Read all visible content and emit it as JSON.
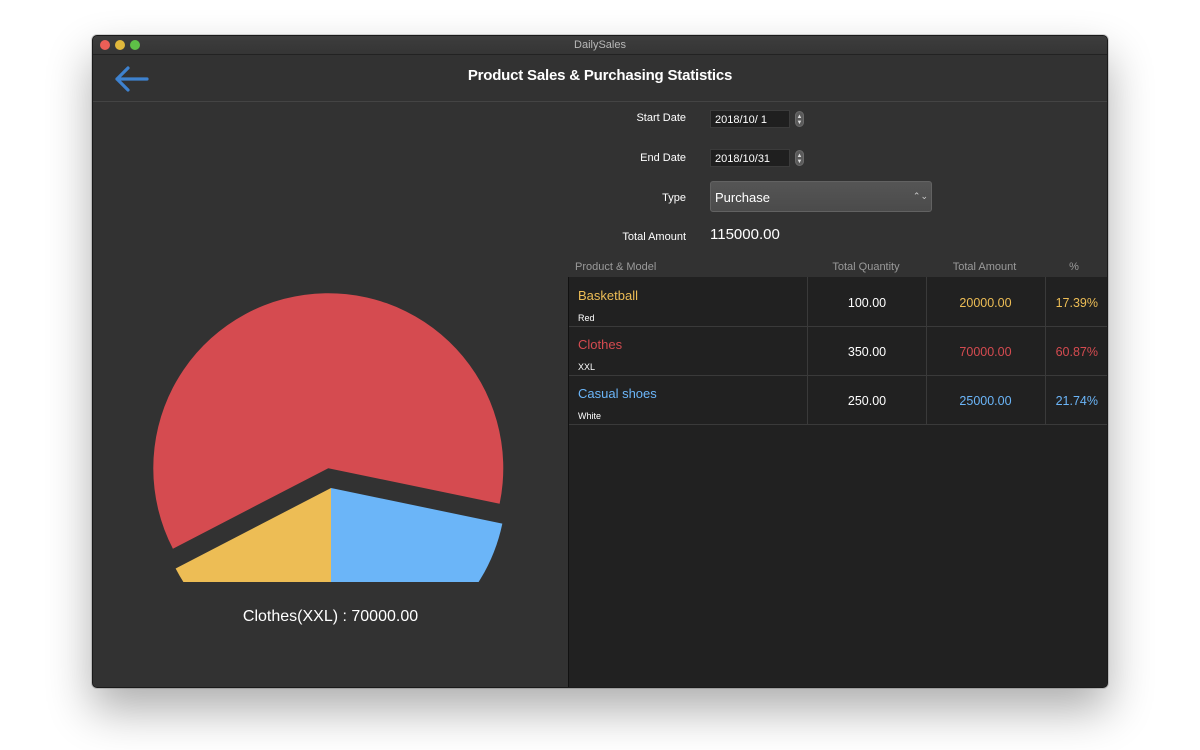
{
  "window": {
    "title": "DailySales"
  },
  "header": {
    "title": "Product Sales & Purchasing Statistics"
  },
  "form": {
    "start_date_label": "Start Date",
    "start_date_value": "2018/10/  1",
    "end_date_label": "End Date",
    "end_date_value": "2018/10/31",
    "type_label": "Type",
    "type_value": "Purchase",
    "total_amount_label": "Total Amount",
    "total_amount_value": "115000.00"
  },
  "table": {
    "columns": [
      "Product & Model",
      "Total Quantity",
      "Total Amount",
      "%"
    ],
    "rows": [
      {
        "name": "Basketball",
        "model": "Red",
        "quantity": "100.00",
        "amount": "20000.00",
        "percent": "17.39%",
        "color": "#EDBD55"
      },
      {
        "name": "Clothes",
        "model": "XXL",
        "quantity": "350.00",
        "amount": "70000.00",
        "percent": "60.87%",
        "color": "#D54B50"
      },
      {
        "name": "Casual shoes",
        "model": "White",
        "quantity": "250.00",
        "amount": "25000.00",
        "percent": "21.74%",
        "color": "#6BB5F8"
      }
    ]
  },
  "chart_data": {
    "type": "pie",
    "categories": [
      "Basketball",
      "Clothes",
      "Casual shoes"
    ],
    "values": [
      20000,
      70000,
      25000
    ],
    "colors": [
      "#EDBD55",
      "#D54B50",
      "#6BB5F8"
    ],
    "exploded": "Clothes"
  },
  "pie_caption": "Clothes(XXL) : 70000.00",
  "icons": {
    "back": "arrow-left-icon",
    "stepper": "stepper-icon",
    "select": "chevron-updown-icon"
  }
}
